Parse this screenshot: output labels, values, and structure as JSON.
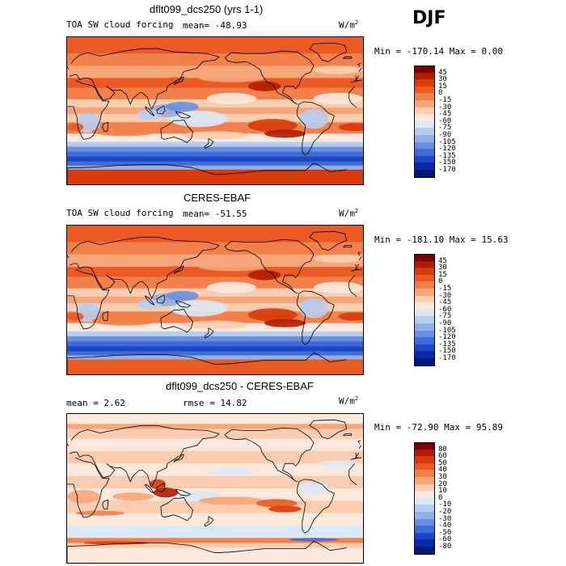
{
  "season": "DJF",
  "panels": [
    {
      "title": "dflt099_dcs250 (yrs 1-1)",
      "field": "TOA SW cloud forcing",
      "stat1": "mean= -48.93",
      "stat2": "",
      "units": "W/m",
      "units_exp": "2",
      "minmax": "Min = -170.14 Max =   0.00"
    },
    {
      "title": "CERES-EBAF",
      "field": "TOA SW cloud forcing",
      "stat1": "mean= -51.55",
      "stat2": "",
      "units": "W/m",
      "units_exp": "2",
      "minmax": "Min = -181.10 Max =  15.63"
    },
    {
      "title": "dflt099_dcs250 - CERES-EBAF",
      "field": "",
      "stat1": "mean =   2.62",
      "stat2": "rmse =  14.82",
      "units": "W/m",
      "units_exp": "2",
      "minmax": "Min = -72.90 Max =  95.89"
    }
  ],
  "chart_data": [
    {
      "type": "heatmap",
      "title": "dflt099_dcs250 (yrs 1-1)",
      "variable": "TOA SW cloud forcing",
      "units": "W/m2",
      "mean": -48.93,
      "min": -170.14,
      "max": 0.0,
      "colorbar_levels": [
        "45",
        "30",
        "15",
        "0",
        "-15",
        "-30",
        "-45",
        "-60",
        "-75",
        "-90",
        "-105",
        "-120",
        "-135",
        "-150",
        "-170"
      ],
      "colors": [
        "#7a0000",
        "#b01c00",
        "#d83a08",
        "#ea5a22",
        "#f2804a",
        "#f7a57a",
        "#fbcdb0",
        "#fde9dc",
        "#dbe8f7",
        "#b7cdee",
        "#90b0e6",
        "#6890de",
        "#3f6cd6",
        "#1b48c8",
        "#0b28a8",
        "#001a78"
      ]
    },
    {
      "type": "heatmap",
      "title": "CERES-EBAF",
      "variable": "TOA SW cloud forcing",
      "units": "W/m2",
      "mean": -51.55,
      "min": -181.1,
      "max": 15.63,
      "colorbar_levels": [
        "45",
        "30",
        "15",
        "0",
        "-15",
        "-30",
        "-45",
        "-60",
        "-75",
        "-90",
        "-105",
        "-120",
        "-135",
        "-150",
        "-170"
      ],
      "colors": [
        "#7a0000",
        "#b01c00",
        "#d83a08",
        "#ea5a22",
        "#f2804a",
        "#f7a57a",
        "#fbcdb0",
        "#fde9dc",
        "#dbe8f7",
        "#b7cdee",
        "#90b0e6",
        "#6890de",
        "#3f6cd6",
        "#1b48c8",
        "#0b28a8",
        "#001a78"
      ]
    },
    {
      "type": "heatmap",
      "title": "dflt099_dcs250 - CERES-EBAF",
      "units": "W/m2",
      "mean": 2.62,
      "rmse": 14.82,
      "min": -72.9,
      "max": 95.89,
      "colorbar_levels": [
        "80",
        "60",
        "50",
        "40",
        "30",
        "20",
        "10",
        "0",
        "-10",
        "-20",
        "-30",
        "-40",
        "-50",
        "-60",
        "-80"
      ],
      "colors": [
        "#7a0000",
        "#b01c00",
        "#d83a08",
        "#ea5a22",
        "#f2804a",
        "#f7a57a",
        "#fbcdb0",
        "#fde9dc",
        "#dbe8f7",
        "#b7cdee",
        "#90b0e6",
        "#6890de",
        "#3f6cd6",
        "#1b48c8",
        "#0b28a8",
        "#001a78"
      ]
    }
  ]
}
